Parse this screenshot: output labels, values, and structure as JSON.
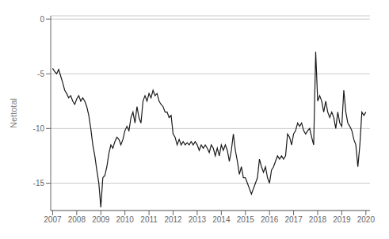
{
  "chart_data": {
    "type": "line",
    "ylabel": "Nettotal",
    "color": "#1a1a1a",
    "grid": true,
    "xlim": [
      2006.92,
      2020.17
    ],
    "xticks": [
      2007,
      2008,
      2009,
      2010,
      2011,
      2012,
      2013,
      2014,
      2015,
      2016,
      2017,
      2018,
      2019,
      2020
    ],
    "ylim": [
      -17.5,
      0.3
    ],
    "yticks": [
      0,
      -5,
      -10,
      -15
    ],
    "x": [
      2007.0,
      2007.083,
      2007.167,
      2007.25,
      2007.333,
      2007.417,
      2007.5,
      2007.583,
      2007.667,
      2007.75,
      2007.833,
      2007.917,
      2008.0,
      2008.083,
      2008.167,
      2008.25,
      2008.333,
      2008.417,
      2008.5,
      2008.583,
      2008.667,
      2008.75,
      2008.833,
      2008.917,
      2009.0,
      2009.083,
      2009.167,
      2009.25,
      2009.333,
      2009.417,
      2009.5,
      2009.583,
      2009.667,
      2009.75,
      2009.833,
      2009.917,
      2010.0,
      2010.083,
      2010.167,
      2010.25,
      2010.333,
      2010.417,
      2010.5,
      2010.583,
      2010.667,
      2010.75,
      2010.833,
      2010.917,
      2011.0,
      2011.083,
      2011.167,
      2011.25,
      2011.333,
      2011.417,
      2011.5,
      2011.583,
      2011.667,
      2011.75,
      2011.833,
      2011.917,
      2012.0,
      2012.083,
      2012.167,
      2012.25,
      2012.333,
      2012.417,
      2012.5,
      2012.583,
      2012.667,
      2012.75,
      2012.833,
      2012.917,
      2013.0,
      2013.083,
      2013.167,
      2013.25,
      2013.333,
      2013.417,
      2013.5,
      2013.583,
      2013.667,
      2013.75,
      2013.833,
      2013.917,
      2014.0,
      2014.083,
      2014.167,
      2014.25,
      2014.333,
      2014.417,
      2014.5,
      2014.583,
      2014.667,
      2014.75,
      2014.833,
      2014.917,
      2015.0,
      2015.083,
      2015.167,
      2015.25,
      2015.333,
      2015.417,
      2015.5,
      2015.583,
      2015.667,
      2015.75,
      2015.833,
      2015.917,
      2016.0,
      2016.083,
      2016.167,
      2016.25,
      2016.333,
      2016.417,
      2016.5,
      2016.583,
      2016.667,
      2016.75,
      2016.833,
      2016.917,
      2017.0,
      2017.083,
      2017.167,
      2017.25,
      2017.333,
      2017.417,
      2017.5,
      2017.583,
      2017.667,
      2017.75,
      2017.833,
      2017.917,
      2018.0,
      2018.083,
      2018.167,
      2018.25,
      2018.333,
      2018.417,
      2018.5,
      2018.583,
      2018.667,
      2018.75,
      2018.833,
      2018.917,
      2019.0,
      2019.083,
      2019.167,
      2019.25,
      2019.333,
      2019.417,
      2019.5,
      2019.583,
      2019.667,
      2019.75,
      2019.833,
      2019.917,
      2020.0
    ],
    "values": [
      -4.5,
      -4.8,
      -5.0,
      -4.6,
      -5.2,
      -5.8,
      -6.5,
      -6.8,
      -7.2,
      -7.0,
      -7.5,
      -7.8,
      -7.3,
      -7.0,
      -7.5,
      -7.2,
      -7.5,
      -8.0,
      -8.8,
      -10.0,
      -11.5,
      -12.5,
      -13.8,
      -15.0,
      -17.2,
      -14.5,
      -14.3,
      -13.5,
      -12.3,
      -11.5,
      -11.8,
      -11.2,
      -10.8,
      -11.0,
      -11.5,
      -11.0,
      -10.2,
      -9.8,
      -10.2,
      -9.0,
      -8.5,
      -9.5,
      -8.0,
      -9.0,
      -9.5,
      -7.5,
      -7.0,
      -7.5,
      -6.8,
      -7.2,
      -6.5,
      -7.0,
      -6.8,
      -7.5,
      -7.8,
      -8.0,
      -8.5,
      -8.5,
      -9.0,
      -8.8,
      -10.5,
      -10.8,
      -11.5,
      -11.0,
      -11.5,
      -11.2,
      -11.5,
      -11.3,
      -11.5,
      -11.2,
      -11.5,
      -11.2,
      -11.5,
      -12.0,
      -11.5,
      -11.8,
      -11.5,
      -11.8,
      -12.2,
      -11.5,
      -11.8,
      -12.5,
      -11.8,
      -12.5,
      -11.5,
      -12.0,
      -11.5,
      -12.0,
      -13.0,
      -12.0,
      -10.5,
      -12.0,
      -13.0,
      -14.2,
      -13.5,
      -14.5,
      -14.5,
      -15.0,
      -15.5,
      -16.0,
      -15.5,
      -15.0,
      -14.5,
      -12.8,
      -13.5,
      -14.0,
      -13.5,
      -14.5,
      -15.0,
      -13.8,
      -13.5,
      -13.0,
      -12.5,
      -12.8,
      -12.5,
      -12.8,
      -12.5,
      -10.5,
      -10.8,
      -11.5,
      -10.5,
      -10.2,
      -9.5,
      -9.8,
      -9.5,
      -10.2,
      -10.5,
      -10.2,
      -10.0,
      -10.8,
      -11.5,
      -3.0,
      -7.5,
      -7.0,
      -7.5,
      -8.5,
      -7.5,
      -8.5,
      -9.0,
      -8.5,
      -9.0,
      -10.0,
      -8.5,
      -9.5,
      -9.8,
      -6.5,
      -8.5,
      -9.5,
      -9.8,
      -10.2,
      -11.0,
      -11.5,
      -13.5,
      -11.5,
      -8.5,
      -8.8,
      -8.5
    ]
  }
}
